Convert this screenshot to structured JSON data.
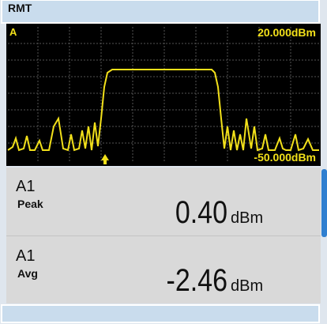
{
  "status_bar": {
    "label": "RMT"
  },
  "trace": {
    "channel": "A",
    "top_ref": "20.000dBm",
    "bottom_ref": "-50.000dBm"
  },
  "measurements": [
    {
      "channel": "A1",
      "type": "Peak",
      "value": "0.40",
      "unit": "dBm"
    },
    {
      "channel": "A1",
      "type": "Avg",
      "value": "-2.46",
      "unit": "dBm"
    }
  ]
}
